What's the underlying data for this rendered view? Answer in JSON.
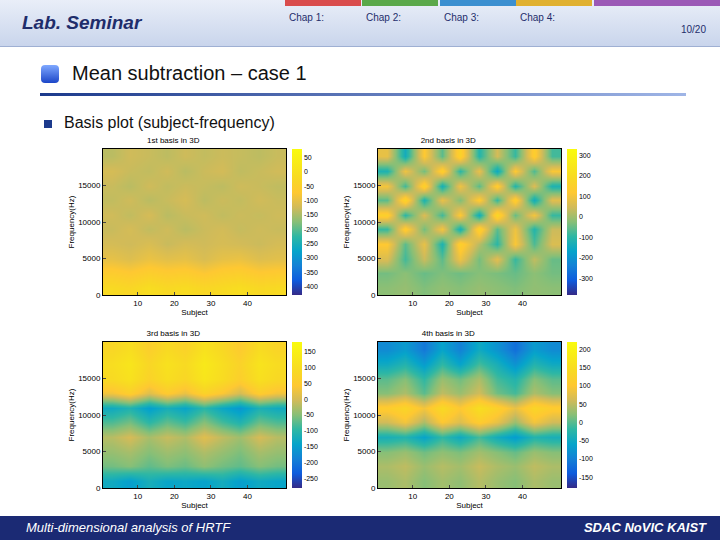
{
  "slide": {
    "header": "Lab. Seminar",
    "chapters": [
      "Chap 1:",
      "Chap 2:",
      "Chap 3:",
      "Chap 4:"
    ],
    "page": "10/20",
    "section": "Mean subtraction – case 1",
    "bullet": "Basis plot (subject-frequency)",
    "footer_left": "Multi-dimensional analysis of HRTF",
    "footer_right": "SDAC NoVIC KAIST"
  },
  "chart_data": [
    {
      "type": "heatmap",
      "title": "1st basis in 3D",
      "x_label": "Subject",
      "y_label": "Frequency(Hz)",
      "x": [
        3,
        8,
        13,
        18,
        23,
        28,
        33,
        38,
        43,
        48
      ],
      "y": [
        1000,
        3000,
        5000,
        7000,
        9000,
        11000,
        13000,
        15000,
        17000,
        19000
      ],
      "xlim": [
        0.5,
        50.5
      ],
      "xticks": [
        10,
        20,
        30,
        40
      ],
      "ylim": [
        0,
        20000
      ],
      "yticks": [
        0,
        5000,
        10000,
        15000
      ],
      "z": [
        [
          -20,
          -30,
          -10,
          -25,
          -15,
          -30,
          -20,
          -10,
          -25,
          -20
        ],
        [
          -60,
          -70,
          -55,
          -65,
          -60,
          -75,
          -60,
          -55,
          -70,
          -65
        ],
        [
          -100,
          -110,
          -95,
          -105,
          -100,
          -115,
          -100,
          -95,
          -110,
          -105
        ],
        [
          -120,
          -125,
          -115,
          -130,
          -120,
          -125,
          -118,
          -122,
          -128,
          -120
        ],
        [
          -130,
          -120,
          -135,
          -125,
          -140,
          -128,
          -122,
          -132,
          -126,
          -130
        ],
        [
          -125,
          -135,
          -120,
          -140,
          -130,
          -125,
          -135,
          -128,
          -132,
          -126
        ],
        [
          -135,
          -125,
          -140,
          -130,
          -120,
          -138,
          -128,
          -134,
          -124,
          -130
        ],
        [
          -130,
          -140,
          -125,
          -135,
          -128,
          -132,
          -138,
          -126,
          -130,
          -136
        ],
        [
          -120,
          -130,
          -135,
          -125,
          -140,
          -128,
          -122,
          -136,
          -130,
          -124
        ],
        [
          -140,
          -125,
          -130,
          -138,
          -126,
          -134,
          -128,
          -132,
          -138,
          -130
        ]
      ],
      "colorbar": {
        "range": [
          -430,
          80
        ],
        "ticks": [
          50,
          0,
          -50,
          -100,
          -150,
          -200,
          -250,
          -300,
          -350,
          -400
        ]
      }
    },
    {
      "type": "heatmap",
      "title": "2nd basis in 3D",
      "x_label": "Subject",
      "y_label": "Frequency(Hz)",
      "x": [
        3,
        8,
        13,
        18,
        23,
        28,
        33,
        38,
        43,
        48
      ],
      "y": [
        1000,
        3000,
        5000,
        7000,
        9000,
        11000,
        13000,
        15000,
        17000,
        19000
      ],
      "xlim": [
        0.5,
        50.5
      ],
      "xticks": [
        10,
        20,
        30,
        40
      ],
      "ylim": [
        0,
        20000
      ],
      "yticks": [
        0,
        5000,
        10000,
        15000
      ],
      "z": [
        [
          -20,
          -10,
          -30,
          -15,
          -25,
          -10,
          -20,
          -30,
          -15,
          -20
        ],
        [
          -40,
          -20,
          -50,
          -30,
          -45,
          -25,
          -35,
          -50,
          -20,
          -40
        ],
        [
          60,
          -80,
          40,
          -60,
          90,
          -40,
          70,
          -90,
          30,
          -50
        ],
        [
          120,
          -60,
          80,
          -120,
          150,
          20,
          -100,
          110,
          -70,
          60
        ],
        [
          -90,
          140,
          -40,
          100,
          -130,
          160,
          -60,
          90,
          -110,
          40
        ],
        [
          150,
          -100,
          60,
          -80,
          120,
          -140,
          180,
          -50,
          100,
          -90
        ],
        [
          -60,
          170,
          -120,
          80,
          -30,
          130,
          -90,
          150,
          -140,
          70
        ],
        [
          100,
          -80,
          160,
          -130,
          90,
          -60,
          140,
          -110,
          60,
          -120
        ],
        [
          -120,
          90,
          -40,
          150,
          -100,
          80,
          -150,
          120,
          -70,
          110
        ],
        [
          80,
          -140,
          120,
          -60,
          160,
          -110,
          50,
          -90,
          140,
          -80
        ]
      ],
      "colorbar": {
        "range": [
          -380,
          330
        ],
        "ticks": [
          300,
          200,
          100,
          0,
          -100,
          -200,
          -300
        ]
      }
    },
    {
      "type": "heatmap",
      "title": "3rd basis in 3D",
      "x_label": "Subject",
      "y_label": "Frequency(Hz)",
      "x": [
        3,
        8,
        13,
        18,
        23,
        28,
        33,
        38,
        43,
        48
      ],
      "y": [
        1000,
        3000,
        5000,
        7000,
        9000,
        11000,
        13000,
        15000,
        17000,
        19000
      ],
      "xlim": [
        0.5,
        50.5
      ],
      "xticks": [
        10,
        20,
        30,
        40
      ],
      "ylim": [
        0,
        20000
      ],
      "yticks": [
        0,
        5000,
        10000,
        15000
      ],
      "z": [
        [
          -130,
          -150,
          -120,
          -140,
          -135,
          -145,
          -125,
          -150,
          -130,
          -140
        ],
        [
          -60,
          -50,
          -70,
          -55,
          -65,
          -45,
          -60,
          -70,
          -50,
          -60
        ],
        [
          -40,
          -30,
          -50,
          -35,
          -45,
          -25,
          -40,
          -55,
          -30,
          -40
        ],
        [
          -20,
          0,
          -30,
          -10,
          -25,
          10,
          -15,
          -35,
          0,
          -20
        ],
        [
          -80,
          -60,
          -100,
          -70,
          -90,
          -50,
          -85,
          -110,
          -65,
          -80
        ],
        [
          -130,
          -110,
          -150,
          -120,
          -140,
          -100,
          -135,
          -160,
          -115,
          -130
        ],
        [
          30,
          60,
          10,
          50,
          20,
          70,
          40,
          0,
          55,
          30
        ],
        [
          90,
          110,
          70,
          100,
          80,
          120,
          95,
          60,
          105,
          85
        ],
        [
          100,
          120,
          80,
          110,
          90,
          130,
          100,
          70,
          115,
          95
        ],
        [
          80,
          100,
          60,
          90,
          70,
          110,
          85,
          50,
          95,
          75
        ]
      ],
      "colorbar": {
        "range": [
          -280,
          180
        ],
        "ticks": [
          150,
          100,
          50,
          0,
          -50,
          -100,
          -150,
          -200,
          -250
        ]
      }
    },
    {
      "type": "heatmap",
      "title": "4th basis in 3D",
      "x_label": "Subject",
      "y_label": "Frequency(Hz)",
      "x": [
        3,
        8,
        13,
        18,
        23,
        28,
        33,
        38,
        43,
        48
      ],
      "y": [
        1000,
        3000,
        5000,
        7000,
        9000,
        11000,
        13000,
        15000,
        17000,
        19000
      ],
      "xlim": [
        0.5,
        50.5
      ],
      "xticks": [
        10,
        20,
        30,
        40
      ],
      "ylim": [
        0,
        20000
      ],
      "yticks": [
        0,
        5000,
        10000,
        15000
      ],
      "z": [
        [
          30,
          40,
          20,
          35,
          25,
          45,
          30,
          20,
          40,
          30
        ],
        [
          40,
          50,
          30,
          45,
          35,
          55,
          40,
          30,
          50,
          40
        ],
        [
          20,
          30,
          10,
          25,
          15,
          35,
          20,
          5,
          30,
          20
        ],
        [
          -40,
          -30,
          -60,
          -20,
          -50,
          -10,
          -45,
          -70,
          -30,
          -40
        ],
        [
          60,
          90,
          40,
          100,
          70,
          110,
          80,
          30,
          90,
          60
        ],
        [
          110,
          130,
          90,
          140,
          100,
          150,
          120,
          80,
          130,
          110
        ],
        [
          20,
          40,
          0,
          50,
          30,
          60,
          10,
          -10,
          40,
          20
        ],
        [
          0,
          20,
          -20,
          30,
          10,
          40,
          -10,
          -30,
          20,
          0
        ],
        [
          -50,
          -30,
          -70,
          -20,
          -60,
          -10,
          -40,
          -80,
          -30,
          -50
        ],
        [
          -90,
          -70,
          -110,
          -60,
          -100,
          -50,
          -80,
          -120,
          -70,
          -90
        ]
      ],
      "colorbar": {
        "range": [
          -180,
          220
        ],
        "ticks": [
          200,
          150,
          100,
          50,
          0,
          -50,
          -100,
          -150
        ]
      }
    }
  ]
}
